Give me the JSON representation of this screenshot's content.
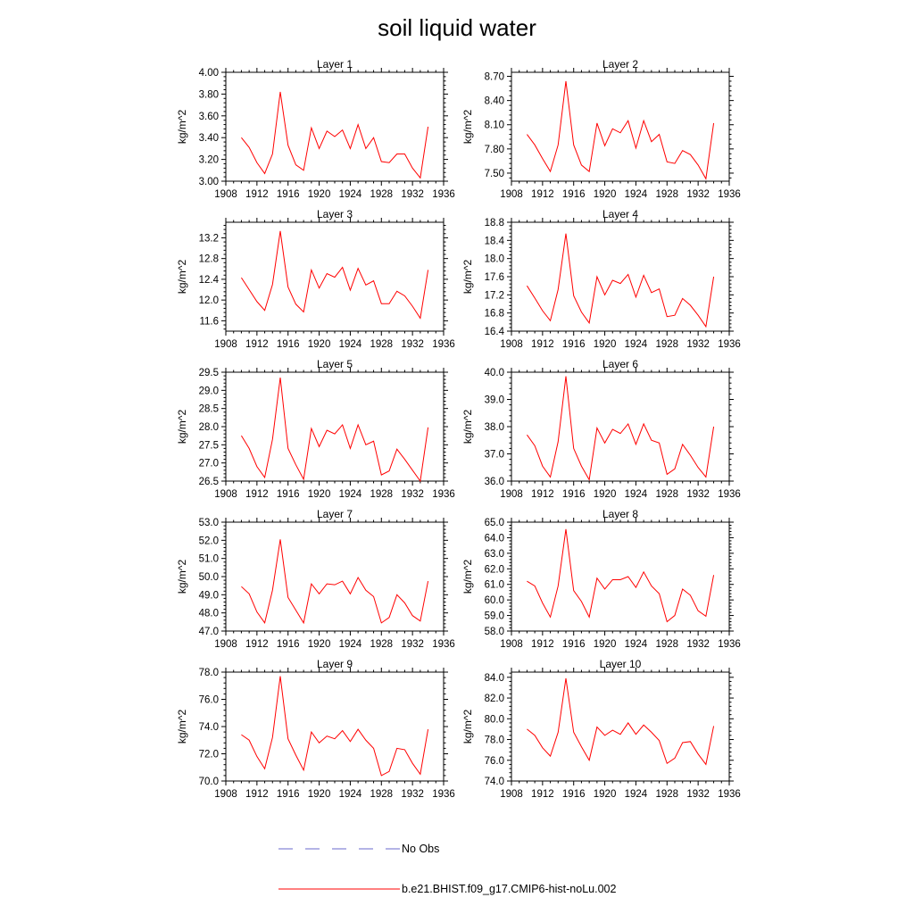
{
  "figure": {
    "title": "soil liquid water"
  },
  "legend": [
    {
      "label": "No Obs",
      "color": "#6a6acd",
      "style": "dashed"
    },
    {
      "label": "b.e21.BHIST.f09_g17.CMIP6-hist-noLu.002",
      "color": "#ff0000",
      "style": "solid"
    }
  ],
  "chart_data": [
    {
      "type": "line",
      "title": "Layer 1",
      "ylabel": "kg/m^2",
      "xlim": [
        1908,
        1936
      ],
      "xticks": [
        "1908",
        "1912",
        "1916",
        "1920",
        "1924",
        "1928",
        "1932",
        "1936"
      ],
      "ylim": [
        3.0,
        4.0
      ],
      "yticks": [
        "3.00",
        "3.20",
        "3.40",
        "3.60",
        "3.80",
        "4.00"
      ],
      "x": [
        1910,
        1911,
        1912,
        1913,
        1914,
        1915,
        1916,
        1917,
        1918,
        1919,
        1920,
        1921,
        1922,
        1923,
        1924,
        1925,
        1926,
        1927,
        1928,
        1929,
        1930,
        1931,
        1932,
        1933,
        1934
      ],
      "series": [
        {
          "name": "b.e21.BHIST.f09_g17.CMIP6-hist-noLu.002",
          "values": [
            3.4,
            3.31,
            3.17,
            3.07,
            3.25,
            3.82,
            3.33,
            3.15,
            3.1,
            3.49,
            3.3,
            3.46,
            3.41,
            3.47,
            3.3,
            3.52,
            3.3,
            3.4,
            3.18,
            3.17,
            3.25,
            3.25,
            3.12,
            3.03,
            3.5
          ]
        }
      ]
    },
    {
      "type": "line",
      "title": "Layer 2",
      "ylabel": "kg/m^2",
      "xlim": [
        1908,
        1936
      ],
      "xticks": [
        "1908",
        "1912",
        "1916",
        "1920",
        "1924",
        "1928",
        "1932",
        "1936"
      ],
      "ylim": [
        7.4,
        8.75
      ],
      "yticks": [
        "7.50",
        "7.80",
        "8.10",
        "8.40",
        "8.70"
      ],
      "x": [
        1910,
        1911,
        1912,
        1913,
        1914,
        1915,
        1916,
        1917,
        1918,
        1919,
        1920,
        1921,
        1922,
        1923,
        1924,
        1925,
        1926,
        1927,
        1928,
        1929,
        1930,
        1931,
        1932,
        1933,
        1934
      ],
      "series": [
        {
          "name": "b.e21.BHIST.f09_g17.CMIP6-hist-noLu.002",
          "values": [
            7.98,
            7.85,
            7.68,
            7.52,
            7.85,
            8.64,
            7.85,
            7.6,
            7.52,
            8.12,
            7.84,
            8.05,
            8.0,
            8.15,
            7.81,
            8.15,
            7.89,
            7.98,
            7.64,
            7.62,
            7.78,
            7.73,
            7.6,
            7.43,
            8.12
          ]
        }
      ]
    },
    {
      "type": "line",
      "title": "Layer 3",
      "ylabel": "kg/m^2",
      "xlim": [
        1908,
        1936
      ],
      "xticks": [
        "1908",
        "1912",
        "1916",
        "1920",
        "1924",
        "1928",
        "1932",
        "1936"
      ],
      "ylim": [
        11.4,
        13.5
      ],
      "yticks": [
        "11.6",
        "12.0",
        "12.4",
        "12.8",
        "13.2"
      ],
      "x": [
        1910,
        1911,
        1912,
        1913,
        1914,
        1915,
        1916,
        1917,
        1918,
        1919,
        1920,
        1921,
        1922,
        1923,
        1924,
        1925,
        1926,
        1927,
        1928,
        1929,
        1930,
        1931,
        1932,
        1933,
        1934
      ],
      "series": [
        {
          "name": "b.e21.BHIST.f09_g17.CMIP6-hist-noLu.002",
          "values": [
            12.43,
            12.2,
            11.97,
            11.8,
            12.3,
            13.33,
            12.25,
            11.92,
            11.77,
            12.58,
            12.23,
            12.51,
            12.44,
            12.63,
            12.19,
            12.61,
            12.29,
            12.37,
            11.93,
            11.93,
            12.17,
            12.08,
            11.88,
            11.65,
            12.58
          ]
        }
      ]
    },
    {
      "type": "line",
      "title": "Layer 4",
      "ylabel": "kg/m^2",
      "xlim": [
        1908,
        1936
      ],
      "xticks": [
        "1908",
        "1912",
        "1916",
        "1920",
        "1924",
        "1928",
        "1932",
        "1936"
      ],
      "ylim": [
        16.4,
        18.8
      ],
      "yticks": [
        "16.4",
        "16.8",
        "17.2",
        "17.6",
        "18.0",
        "18.4",
        "18.8"
      ],
      "x": [
        1910,
        1911,
        1912,
        1913,
        1914,
        1915,
        1916,
        1917,
        1918,
        1919,
        1920,
        1921,
        1922,
        1923,
        1924,
        1925,
        1926,
        1927,
        1928,
        1929,
        1930,
        1931,
        1932,
        1933,
        1934
      ],
      "series": [
        {
          "name": "b.e21.BHIST.f09_g17.CMIP6-hist-noLu.002",
          "values": [
            17.4,
            17.13,
            16.85,
            16.63,
            17.32,
            18.55,
            17.18,
            16.82,
            16.58,
            17.6,
            17.2,
            17.52,
            17.45,
            17.65,
            17.15,
            17.63,
            17.25,
            17.33,
            16.72,
            16.75,
            17.12,
            16.97,
            16.75,
            16.5,
            17.6
          ]
        }
      ]
    },
    {
      "type": "line",
      "title": "Layer 5",
      "ylabel": "kg/m^2",
      "xlim": [
        1908,
        1936
      ],
      "xticks": [
        "1908",
        "1912",
        "1916",
        "1920",
        "1924",
        "1928",
        "1932",
        "1936"
      ],
      "ylim": [
        26.5,
        29.5
      ],
      "yticks": [
        "26.5",
        "27.0",
        "27.5",
        "28.0",
        "28.5",
        "29.0",
        "29.5"
      ],
      "x": [
        1910,
        1911,
        1912,
        1913,
        1914,
        1915,
        1916,
        1917,
        1918,
        1919,
        1920,
        1921,
        1922,
        1923,
        1924,
        1925,
        1926,
        1927,
        1928,
        1929,
        1930,
        1931,
        1932,
        1933,
        1934
      ],
      "series": [
        {
          "name": "b.e21.BHIST.f09_g17.CMIP6-hist-noLu.002",
          "values": [
            27.75,
            27.4,
            26.9,
            26.6,
            27.65,
            29.35,
            27.4,
            26.95,
            26.55,
            27.95,
            27.45,
            27.9,
            27.8,
            28.05,
            27.4,
            28.05,
            27.5,
            27.6,
            26.67,
            26.78,
            27.38,
            27.1,
            26.8,
            26.5,
            27.98
          ]
        }
      ]
    },
    {
      "type": "line",
      "title": "Layer 6",
      "ylabel": "kg/m^2",
      "xlim": [
        1908,
        1936
      ],
      "xticks": [
        "1908",
        "1912",
        "1916",
        "1920",
        "1924",
        "1928",
        "1932",
        "1936"
      ],
      "ylim": [
        36.0,
        40.0
      ],
      "yticks": [
        "36.0",
        "37.0",
        "38.0",
        "39.0",
        "40.0"
      ],
      "x": [
        1910,
        1911,
        1912,
        1913,
        1914,
        1915,
        1916,
        1917,
        1918,
        1919,
        1920,
        1921,
        1922,
        1923,
        1924,
        1925,
        1926,
        1927,
        1928,
        1929,
        1930,
        1931,
        1932,
        1933,
        1934
      ],
      "series": [
        {
          "name": "b.e21.BHIST.f09_g17.CMIP6-hist-noLu.002",
          "values": [
            37.7,
            37.3,
            36.55,
            36.15,
            37.45,
            39.85,
            37.2,
            36.55,
            36.05,
            37.95,
            37.4,
            37.9,
            37.75,
            38.1,
            37.35,
            38.1,
            37.5,
            37.4,
            36.25,
            36.45,
            37.35,
            36.95,
            36.5,
            36.15,
            38.0
          ]
        }
      ]
    },
    {
      "type": "line",
      "title": "Layer 7",
      "ylabel": "kg/m^2",
      "xlim": [
        1908,
        1936
      ],
      "xticks": [
        "1908",
        "1912",
        "1916",
        "1920",
        "1924",
        "1928",
        "1932",
        "1936"
      ],
      "ylim": [
        47.0,
        53.0
      ],
      "yticks": [
        "47.0",
        "48.0",
        "49.0",
        "50.0",
        "51.0",
        "52.0",
        "53.0"
      ],
      "x": [
        1910,
        1911,
        1912,
        1913,
        1914,
        1915,
        1916,
        1917,
        1918,
        1919,
        1920,
        1921,
        1922,
        1923,
        1924,
        1925,
        1926,
        1927,
        1928,
        1929,
        1930,
        1931,
        1932,
        1933,
        1934
      ],
      "series": [
        {
          "name": "b.e21.BHIST.f09_g17.CMIP6-hist-noLu.002",
          "values": [
            49.45,
            49.05,
            48.05,
            47.45,
            49.25,
            52.05,
            48.85,
            48.15,
            47.45,
            49.6,
            49.05,
            49.6,
            49.55,
            49.75,
            49.05,
            49.95,
            49.25,
            48.9,
            47.45,
            47.75,
            49.0,
            48.55,
            47.85,
            47.55,
            49.75
          ]
        }
      ]
    },
    {
      "type": "line",
      "title": "Layer 8",
      "ylabel": "kg/m^2",
      "xlim": [
        1908,
        1936
      ],
      "xticks": [
        "1908",
        "1912",
        "1916",
        "1920",
        "1924",
        "1928",
        "1932",
        "1936"
      ],
      "ylim": [
        58.0,
        65.0
      ],
      "yticks": [
        "58.0",
        "59.0",
        "60.0",
        "61.0",
        "62.0",
        "63.0",
        "64.0",
        "65.0"
      ],
      "x": [
        1910,
        1911,
        1912,
        1913,
        1914,
        1915,
        1916,
        1917,
        1918,
        1919,
        1920,
        1921,
        1922,
        1923,
        1924,
        1925,
        1926,
        1927,
        1928,
        1929,
        1930,
        1931,
        1932,
        1933,
        1934
      ],
      "series": [
        {
          "name": "b.e21.BHIST.f09_g17.CMIP6-hist-noLu.002",
          "values": [
            61.2,
            60.9,
            59.8,
            58.9,
            60.9,
            64.55,
            60.6,
            59.9,
            58.9,
            61.4,
            60.7,
            61.3,
            61.3,
            61.5,
            60.8,
            61.8,
            60.9,
            60.4,
            58.6,
            59.0,
            60.7,
            60.3,
            59.3,
            58.95,
            61.6
          ]
        }
      ]
    },
    {
      "type": "line",
      "title": "Layer 9",
      "ylabel": "kg/m^2",
      "xlim": [
        1908,
        1936
      ],
      "xticks": [
        "1908",
        "1912",
        "1916",
        "1920",
        "1924",
        "1928",
        "1932",
        "1936"
      ],
      "ylim": [
        70.0,
        78.0
      ],
      "yticks": [
        "70.0",
        "72.0",
        "74.0",
        "76.0",
        "78.0"
      ],
      "x": [
        1910,
        1911,
        1912,
        1913,
        1914,
        1915,
        1916,
        1917,
        1918,
        1919,
        1920,
        1921,
        1922,
        1923,
        1924,
        1925,
        1926,
        1927,
        1928,
        1929,
        1930,
        1931,
        1932,
        1933,
        1934
      ],
      "series": [
        {
          "name": "b.e21.BHIST.f09_g17.CMIP6-hist-noLu.002",
          "values": [
            73.4,
            73.0,
            71.8,
            70.9,
            73.2,
            77.7,
            73.1,
            71.9,
            70.8,
            73.6,
            72.8,
            73.3,
            73.1,
            73.7,
            72.9,
            73.8,
            73.0,
            72.4,
            70.4,
            70.7,
            72.4,
            72.3,
            71.3,
            70.5,
            73.8
          ]
        }
      ]
    },
    {
      "type": "line",
      "title": "Layer 10",
      "ylabel": "kg/m^2",
      "xlim": [
        1908,
        1936
      ],
      "xticks": [
        "1908",
        "1912",
        "1916",
        "1920",
        "1924",
        "1928",
        "1932",
        "1936"
      ],
      "ylim": [
        74.0,
        84.5
      ],
      "yticks": [
        "74.0",
        "76.0",
        "78.0",
        "80.0",
        "82.0",
        "84.0"
      ],
      "x": [
        1910,
        1911,
        1912,
        1913,
        1914,
        1915,
        1916,
        1917,
        1918,
        1919,
        1920,
        1921,
        1922,
        1923,
        1924,
        1925,
        1926,
        1927,
        1928,
        1929,
        1930,
        1931,
        1932,
        1933,
        1934
      ],
      "series": [
        {
          "name": "b.e21.BHIST.f09_g17.CMIP6-hist-noLu.002",
          "values": [
            79.0,
            78.4,
            77.2,
            76.4,
            78.7,
            83.9,
            78.7,
            77.3,
            76.0,
            79.2,
            78.4,
            78.9,
            78.5,
            79.6,
            78.5,
            79.4,
            78.7,
            77.9,
            75.7,
            76.2,
            77.7,
            77.8,
            76.6,
            75.6,
            79.3
          ]
        }
      ]
    }
  ]
}
